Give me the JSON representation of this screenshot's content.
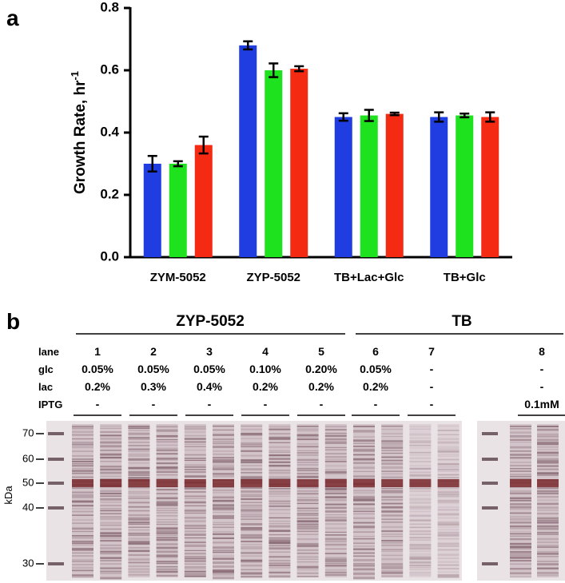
{
  "chart_data": {
    "type": "bar",
    "panel_label": "a",
    "y_label": "Growth Rate, hr",
    "y_label_superscript": "-1",
    "categories": [
      "ZYM-5052",
      "ZYP-5052",
      "TB+Lac+Glc",
      "TB+Glc"
    ],
    "series": [
      {
        "color": "#1f3de0",
        "values": [
          0.3,
          0.68,
          0.45,
          0.45
        ],
        "errors": [
          0.025,
          0.013,
          0.012,
          0.015
        ]
      },
      {
        "color": "#1ee21e",
        "values": [
          0.3,
          0.6,
          0.455,
          0.455
        ],
        "errors": [
          0.008,
          0.022,
          0.018,
          0.006
        ]
      },
      {
        "color": "#f42a12",
        "values": [
          0.36,
          0.605,
          0.46,
          0.45
        ],
        "errors": [
          0.027,
          0.008,
          0.004,
          0.015
        ]
      }
    ],
    "ylim": [
      0,
      0.8
    ],
    "yticks": [
      {
        "value": 0,
        "label": "0.0"
      },
      0.2,
      0.4,
      0.6,
      0.8
    ]
  },
  "gel": {
    "panel_label": "b",
    "groups": [
      "ZYP-5052",
      "TB"
    ],
    "row_labels": [
      "lane",
      "glc",
      "lac",
      "IPTG"
    ],
    "lanes": [
      [
        "1",
        "0.05%",
        "0.2%",
        "-"
      ],
      [
        "2",
        "0.05%",
        "0.3%",
        "-"
      ],
      [
        "3",
        "0.05%",
        "0.4%",
        "-"
      ],
      [
        "4",
        "0.10%",
        "0.2%",
        "-"
      ],
      [
        "5",
        "0.20%",
        "0.2%",
        "-"
      ],
      [
        "6",
        "0.05%",
        "0.2%",
        "-"
      ],
      [
        "7",
        "-",
        "-",
        "-"
      ],
      [
        "8",
        "-",
        "-",
        "0.1mM"
      ]
    ],
    "markers": [
      "70",
      "60",
      "50",
      "40",
      "30"
    ],
    "unit": "kDa"
  }
}
